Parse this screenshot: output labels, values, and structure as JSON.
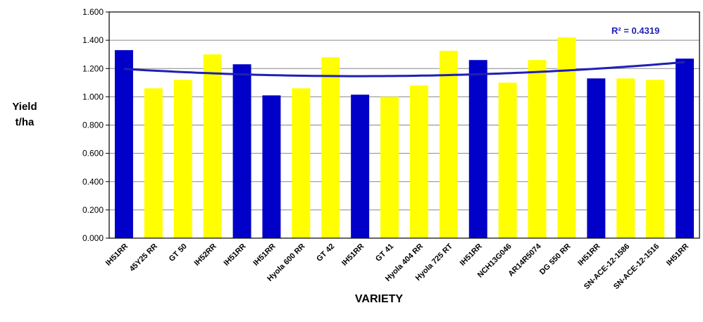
{
  "chart_data": {
    "type": "bar",
    "xlabel": "VARIETY",
    "ylabel_line1": "Yield",
    "ylabel_line2": "t/ha",
    "ylim": [
      0,
      1.6
    ],
    "yticks": [
      "0.000",
      "0.200",
      "0.400",
      "0.600",
      "0.800",
      "1.000",
      "1.200",
      "1.400",
      "1.600"
    ],
    "categories": [
      "IH51RR",
      "45Y25 RR",
      "GT 50",
      "IH52RR",
      "IH51RR",
      "IH51RR",
      "Hyola 600 RR",
      "GT 42",
      "IH51RR",
      "GT 41",
      "Hyola 404 RR",
      "Hyola 725 RT",
      "IH51RR",
      "NCH13G046",
      "AR14R5074",
      "DG 550 RR",
      "IH51RR",
      "SN-ACE-12-1586",
      "SN-ACE-12-1516",
      "IH51RR"
    ],
    "values": [
      1.33,
      1.06,
      1.12,
      1.3,
      1.23,
      1.01,
      1.06,
      1.28,
      1.015,
      1.0,
      1.08,
      1.325,
      1.26,
      1.1,
      1.26,
      1.42,
      1.13,
      1.13,
      1.12,
      1.27
    ],
    "control_flags": [
      true,
      false,
      false,
      false,
      true,
      true,
      false,
      false,
      true,
      false,
      false,
      false,
      true,
      false,
      false,
      false,
      true,
      false,
      false,
      true
    ],
    "colors": {
      "control": "#0000c8",
      "other": "#ffff00",
      "trend": "#1f1fb5"
    },
    "trendline": {
      "type": "polynomial",
      "order": 2,
      "r2_label": "R² = 0.4319"
    },
    "grid": "horizontal",
    "legend": "none"
  }
}
